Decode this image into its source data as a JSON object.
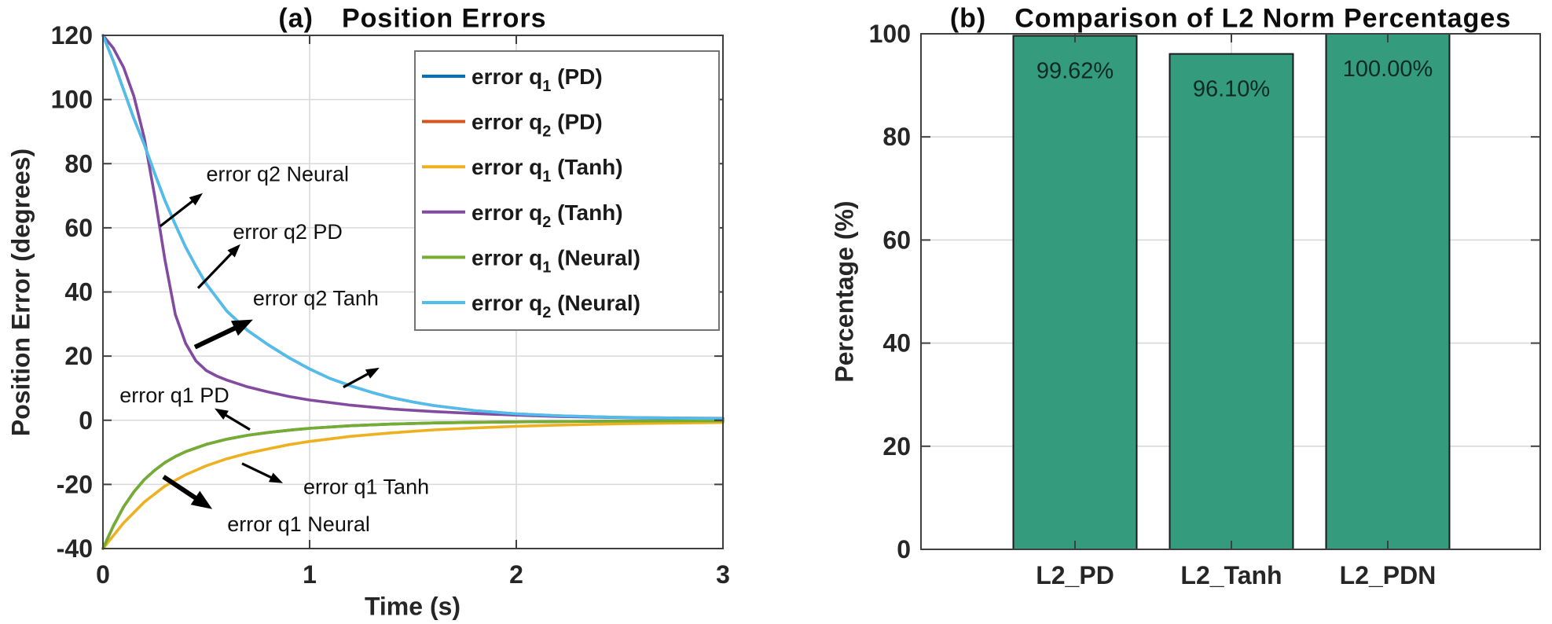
{
  "figure": {
    "background": "#ffffff"
  },
  "chart_data": [
    {
      "type": "line",
      "title_prefix": "(a)",
      "title": "Position Errors",
      "xlabel": "Time (s)",
      "ylabel": "Position Error (degrees)",
      "xlim": [
        0,
        3
      ],
      "ylim": [
        -40,
        120
      ],
      "xticks": [
        0,
        1,
        2,
        3
      ],
      "yticks": [
        -40,
        -20,
        0,
        20,
        40,
        60,
        80,
        100,
        120
      ],
      "grid": true,
      "legend_position": "upper-right",
      "series": [
        {
          "name": "error q_1 (PD)",
          "legend": {
            "pre": "error q",
            "sub": "1",
            "post": " (PD)"
          },
          "color": "#0072BD",
          "points": [
            [
              0,
              -40
            ],
            [
              0.05,
              -33
            ],
            [
              0.1,
              -27
            ],
            [
              0.15,
              -22.3
            ],
            [
              0.2,
              -18.5
            ],
            [
              0.25,
              -15.6
            ],
            [
              0.3,
              -13.2
            ],
            [
              0.35,
              -11.3
            ],
            [
              0.4,
              -9.8
            ],
            [
              0.5,
              -7.5
            ],
            [
              0.6,
              -5.9
            ],
            [
              0.7,
              -4.7
            ],
            [
              0.8,
              -3.8
            ],
            [
              0.9,
              -3.1
            ],
            [
              1,
              -2.5
            ],
            [
              1.2,
              -1.7
            ],
            [
              1.4,
              -1.2
            ],
            [
              1.6,
              -0.85
            ],
            [
              1.8,
              -0.65
            ],
            [
              2,
              -0.5
            ],
            [
              2.5,
              -0.25
            ],
            [
              3,
              -0.1
            ]
          ]
        },
        {
          "name": "error q_2 (PD)",
          "legend": {
            "pre": "error q",
            "sub": "2",
            "post": " (PD)"
          },
          "color": "#D95319",
          "points": [
            [
              0,
              120
            ],
            [
              0.05,
              112
            ],
            [
              0.1,
              103
            ],
            [
              0.15,
              94
            ],
            [
              0.2,
              86
            ],
            [
              0.25,
              77
            ],
            [
              0.3,
              68.5
            ],
            [
              0.35,
              61
            ],
            [
              0.4,
              54
            ],
            [
              0.45,
              48
            ],
            [
              0.5,
              42.5
            ],
            [
              0.6,
              34
            ],
            [
              0.7,
              28
            ],
            [
              0.8,
              23.5
            ],
            [
              0.9,
              19.5
            ],
            [
              1,
              16
            ],
            [
              1.1,
              13
            ],
            [
              1.2,
              10.7
            ],
            [
              1.3,
              8.7
            ],
            [
              1.4,
              7
            ],
            [
              1.5,
              5.7
            ],
            [
              1.6,
              4.6
            ],
            [
              1.8,
              3
            ],
            [
              2,
              2
            ],
            [
              2.2,
              1.4
            ],
            [
              2.5,
              0.9
            ],
            [
              2.8,
              0.7
            ],
            [
              3,
              0.6
            ]
          ]
        },
        {
          "name": "error q_1 (Tanh)",
          "legend": {
            "pre": "error q",
            "sub": "1",
            "post": " (Tanh)"
          },
          "color": "#EDB120",
          "points": [
            [
              0,
              -40
            ],
            [
              0.1,
              -32
            ],
            [
              0.2,
              -25.5
            ],
            [
              0.3,
              -20.5
            ],
            [
              0.4,
              -17
            ],
            [
              0.5,
              -14.2
            ],
            [
              0.6,
              -12
            ],
            [
              0.7,
              -10.3
            ],
            [
              0.8,
              -8.9
            ],
            [
              0.9,
              -7.6
            ],
            [
              1,
              -6.6
            ],
            [
              1.2,
              -5
            ],
            [
              1.4,
              -3.9
            ],
            [
              1.6,
              -3
            ],
            [
              1.8,
              -2.4
            ],
            [
              2,
              -1.9
            ],
            [
              2.2,
              -1.5
            ],
            [
              2.5,
              -1.1
            ],
            [
              2.8,
              -0.85
            ],
            [
              3,
              -0.7
            ]
          ]
        },
        {
          "name": "error q_2 (Tanh)",
          "legend": {
            "pre": "error q",
            "sub": "2",
            "post": " (Tanh)"
          },
          "color": "#824BA0",
          "points": [
            [
              0,
              120
            ],
            [
              0.05,
              116
            ],
            [
              0.1,
              110
            ],
            [
              0.15,
              101
            ],
            [
              0.2,
              88
            ],
            [
              0.25,
              70
            ],
            [
              0.3,
              50
            ],
            [
              0.35,
              33
            ],
            [
              0.4,
              24
            ],
            [
              0.45,
              18.5
            ],
            [
              0.5,
              15.5
            ],
            [
              0.55,
              13.8
            ],
            [
              0.6,
              12.5
            ],
            [
              0.7,
              10.4
            ],
            [
              0.8,
              8.8
            ],
            [
              0.9,
              7.4
            ],
            [
              1,
              6.3
            ],
            [
              1.2,
              4.7
            ],
            [
              1.4,
              3.5
            ],
            [
              1.6,
              2.7
            ],
            [
              1.8,
              2.1
            ],
            [
              2,
              1.6
            ],
            [
              2.2,
              1.2
            ],
            [
              2.5,
              0.8
            ],
            [
              2.8,
              0.6
            ],
            [
              3,
              0.5
            ]
          ]
        },
        {
          "name": "error q_1 (Neural)",
          "legend": {
            "pre": "error q",
            "sub": "1",
            "post": " (Neural)"
          },
          "color": "#77AC30",
          "points": [
            [
              0,
              -40
            ],
            [
              0.05,
              -33
            ],
            [
              0.1,
              -27
            ],
            [
              0.15,
              -22.3
            ],
            [
              0.2,
              -18.5
            ],
            [
              0.25,
              -15.6
            ],
            [
              0.3,
              -13.2
            ],
            [
              0.35,
              -11.3
            ],
            [
              0.4,
              -9.8
            ],
            [
              0.5,
              -7.5
            ],
            [
              0.6,
              -5.9
            ],
            [
              0.7,
              -4.7
            ],
            [
              0.8,
              -3.8
            ],
            [
              0.9,
              -3.1
            ],
            [
              1,
              -2.5
            ],
            [
              1.2,
              -1.7
            ],
            [
              1.4,
              -1.2
            ],
            [
              1.6,
              -0.85
            ],
            [
              1.8,
              -0.65
            ],
            [
              2,
              -0.5
            ],
            [
              2.5,
              -0.25
            ],
            [
              3,
              -0.15
            ]
          ]
        },
        {
          "name": "error q_2 (Neural)",
          "legend": {
            "pre": "error q",
            "sub": "2",
            "post": " (Neural)"
          },
          "color": "#4DBEEE",
          "points": [
            [
              0,
              120
            ],
            [
              0.05,
              112
            ],
            [
              0.1,
              103
            ],
            [
              0.15,
              94
            ],
            [
              0.2,
              86
            ],
            [
              0.25,
              77
            ],
            [
              0.3,
              68.5
            ],
            [
              0.35,
              61
            ],
            [
              0.4,
              54
            ],
            [
              0.45,
              48
            ],
            [
              0.5,
              42.5
            ],
            [
              0.6,
              34
            ],
            [
              0.7,
              28
            ],
            [
              0.8,
              23.5
            ],
            [
              0.9,
              19.5
            ],
            [
              1,
              16
            ],
            [
              1.1,
              13
            ],
            [
              1.2,
              10.7
            ],
            [
              1.3,
              8.7
            ],
            [
              1.4,
              7
            ],
            [
              1.5,
              5.7
            ],
            [
              1.6,
              4.6
            ],
            [
              1.8,
              3
            ],
            [
              2,
              2
            ],
            [
              2.2,
              1.4
            ],
            [
              2.5,
              0.9
            ],
            [
              2.8,
              0.65
            ],
            [
              3,
              0.55
            ]
          ]
        }
      ],
      "annotations": [
        {
          "text": "error q2 Neural",
          "tx": 0.845,
          "ty": 76.7,
          "ax": 0.277,
          "ay": 60.5,
          "bx": 0.483,
          "by": 70.8,
          "thick": false
        },
        {
          "text": "error q2 PD",
          "tx": 0.894,
          "ty": 58.8,
          "ax": 0.46,
          "ay": 41.2,
          "bx": 0.665,
          "by": 54.9,
          "thick": false
        },
        {
          "text": "error q2 Tanh",
          "tx": 1.03,
          "ty": 38.0,
          "ax": 0.445,
          "ay": 22.8,
          "bx": 0.726,
          "by": 31.4,
          "thick": true
        },
        {
          "text": "",
          "tx": null,
          "ty": null,
          "ax": 1.163,
          "ay": 10.3,
          "bx": 1.338,
          "by": 16.4,
          "thick": false
        },
        {
          "text": "error q1 PD",
          "tx": 0.346,
          "ty": 7.8,
          "ax": 0.711,
          "ay": -2.9,
          "bx": 0.54,
          "by": 3.7,
          "thick": false
        },
        {
          "text": "error q1 Tanh",
          "tx": 1.274,
          "ty": -20.8,
          "ax": 0.673,
          "ay": -13.5,
          "bx": 0.871,
          "by": -19.6,
          "thick": false
        },
        {
          "text": "error q1 Neural",
          "tx": 0.947,
          "ty": -32.4,
          "ax": 0.293,
          "ay": -17.6,
          "bx": 0.529,
          "by": -27.7,
          "thick": true
        }
      ]
    },
    {
      "type": "bar",
      "title_prefix": "(b)",
      "title": "Comparison of L2 Norm Percentages",
      "ylabel": "Percentage (%)",
      "ylim": [
        0,
        100
      ],
      "yticks": [
        0,
        20,
        40,
        60,
        80,
        100
      ],
      "categories": [
        "L2_PD",
        "L2_Tanh",
        "L2_PDN"
      ],
      "values": [
        99.62,
        96.1,
        100.0
      ],
      "value_labels": [
        "99.62%",
        "96.10%",
        "100.00%"
      ],
      "bar_color": "#359B7D",
      "bar_edge_color": "#1a1a1a",
      "grid": true
    }
  ]
}
